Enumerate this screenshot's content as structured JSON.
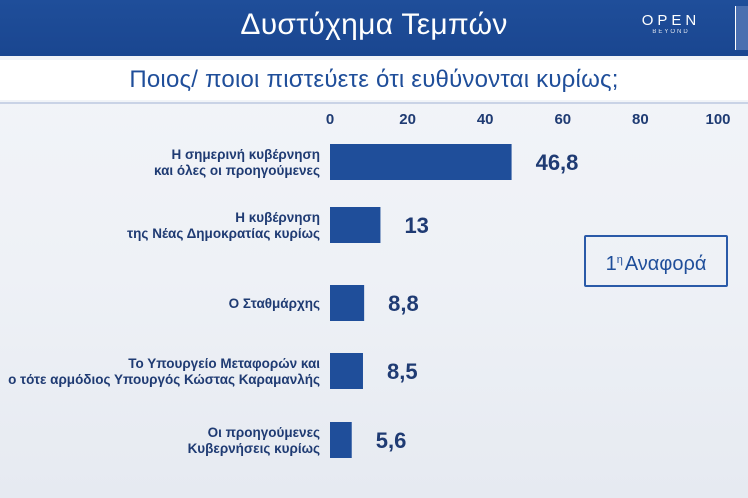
{
  "header": {
    "title": "Δυστύχημα Τεμπών",
    "brand": "OPEN",
    "brand_sub": "BEYOND"
  },
  "question": "Ποιος/ ποιοι πιστεύετε ότι ευθύνονται κυρίως;",
  "badge": {
    "main": "1",
    "sup": "η",
    "label": "Αναφορά"
  },
  "colors": {
    "bar": "#1f4e9a",
    "header": "#1f4e9a",
    "text": "#1f3b73"
  },
  "chart_data": {
    "type": "bar",
    "orientation": "horizontal",
    "categories": [
      [
        "Η σημερινή κυβέρνηση",
        "και όλες οι προηγούμενες"
      ],
      [
        "Η κυβέρνηση",
        "της Νέας Δημοκρατίας κυρίως"
      ],
      [
        "Ο Σταθμάρχης"
      ],
      [
        "Το Υπουργείο Μεταφορών και",
        "ο τότε αρμόδιος Υπουργός Κώστας Καραμανλής"
      ],
      [
        "Οι προηγούμενες",
        "Κυβερνήσεις κυρίως"
      ]
    ],
    "values": [
      46.8,
      13,
      8.8,
      8.5,
      5.6
    ],
    "value_labels": [
      "46,8",
      "13",
      "8,8",
      "8,5",
      "5,6"
    ],
    "xlim": [
      0,
      100
    ],
    "xticks": [
      0,
      20,
      40,
      60,
      80,
      100
    ],
    "tick_labels": [
      "0",
      "20",
      "40",
      "60",
      "80",
      "100"
    ],
    "grid": false
  }
}
